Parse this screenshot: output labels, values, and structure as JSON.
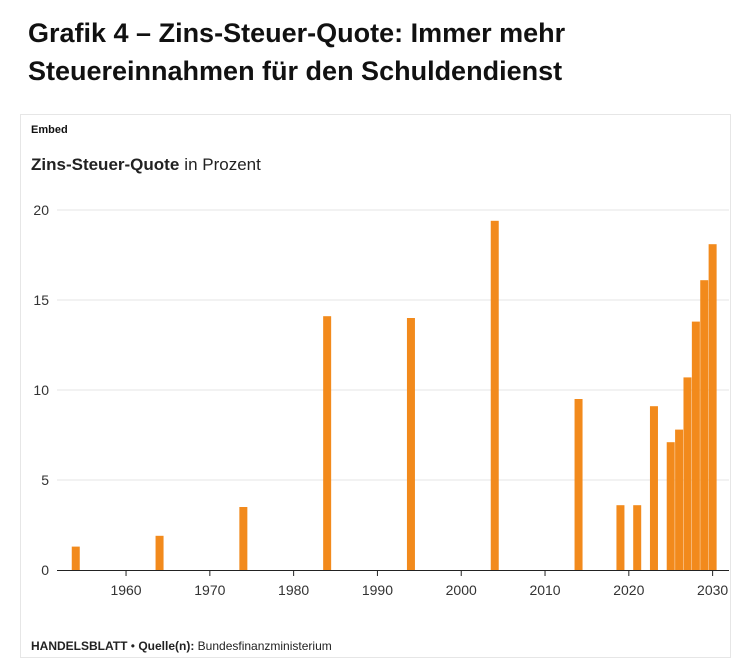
{
  "page_title": "Grafik 4 – Zins-Steuer-Quote: Immer mehr Steuereinnahmen für den Schuldendienst",
  "embed_label": "Embed",
  "chart_heading_bold": "Zins-Steuer-Quote",
  "chart_heading_unit": "in Prozent",
  "footer": {
    "brand": "HANDELSBLATT",
    "separator": "•",
    "source_label": "Quelle(n):",
    "source": "Bundesfinanzministerium"
  },
  "colors": {
    "bar": "#f28a1c",
    "grid": "#e4e4e4",
    "axis": "#222222"
  },
  "chart_data": {
    "type": "bar",
    "title": "Zins-Steuer-Quote",
    "ylabel": "in Prozent",
    "xlabel": "",
    "xlim": [
      1952,
      2031
    ],
    "ylim": [
      0,
      20
    ],
    "yticks": [
      0,
      5,
      10,
      15,
      20
    ],
    "xticks": [
      1960,
      1970,
      1980,
      1990,
      2000,
      2010,
      2020,
      2030
    ],
    "grid": true,
    "x": [
      1954,
      1964,
      1974,
      1984,
      1994,
      2004,
      2014,
      2019,
      2021,
      2023,
      2025,
      2026,
      2027,
      2028,
      2029,
      2030
    ],
    "values": [
      1.3,
      1.9,
      3.5,
      14.1,
      14.0,
      19.4,
      9.5,
      3.6,
      3.6,
      9.1,
      7.1,
      7.8,
      10.7,
      13.8,
      16.1,
      18.1
    ]
  }
}
